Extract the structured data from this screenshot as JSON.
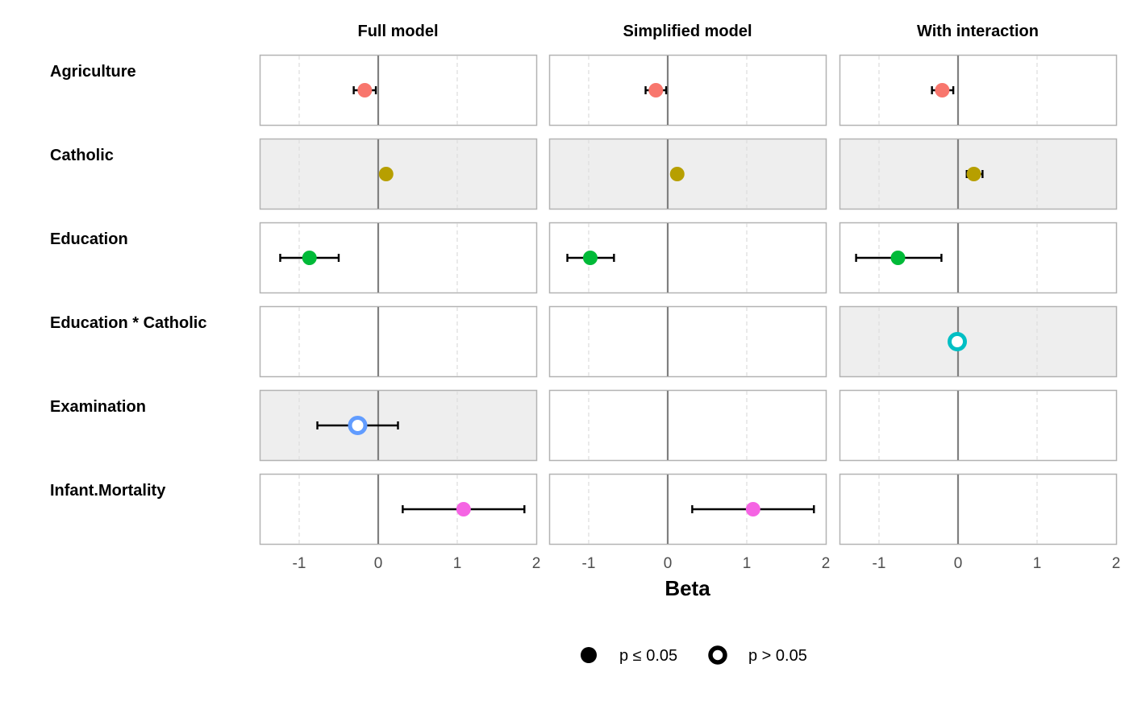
{
  "chart_data": {
    "type": "forest",
    "xlabel": "Beta",
    "xlim": [
      -1.5,
      2
    ],
    "x_ticks": [
      -1,
      0,
      1,
      2
    ],
    "x_tick_labels": [
      "-1",
      "0",
      "1",
      "2"
    ],
    "grid": "vertical dashed at ticks, solid reference line at 0",
    "columns": [
      "Full model",
      "Simplified model",
      "With interaction"
    ],
    "terms": [
      "Agriculture",
      "Catholic",
      "Education",
      "Education * Catholic",
      "Examination",
      "Infant.Mortality"
    ],
    "term_colors": {
      "Agriculture": "#F8766D",
      "Catholic": "#B79F00",
      "Education": "#00BA38",
      "Education * Catholic": "#00BFC4",
      "Examination": "#619CFF",
      "Infant.Mortality": "#F564E3"
    },
    "estimates": [
      {
        "model": "Full model",
        "term": "Agriculture",
        "beta": -0.17,
        "low": -0.31,
        "high": -0.03,
        "significant": true
      },
      {
        "model": "Full model",
        "term": "Catholic",
        "beta": 0.1,
        "low": 0.05,
        "high": 0.15,
        "significant": true
      },
      {
        "model": "Full model",
        "term": "Education",
        "beta": -0.87,
        "low": -1.24,
        "high": -0.5,
        "significant": true
      },
      {
        "model": "Full model",
        "term": "Examination",
        "beta": -0.26,
        "low": -0.77,
        "high": 0.25,
        "significant": false
      },
      {
        "model": "Full model",
        "term": "Infant.Mortality",
        "beta": 1.08,
        "low": 0.31,
        "high": 1.85,
        "significant": true
      },
      {
        "model": "Simplified model",
        "term": "Agriculture",
        "beta": -0.15,
        "low": -0.28,
        "high": -0.02,
        "significant": true
      },
      {
        "model": "Simplified model",
        "term": "Catholic",
        "beta": 0.12,
        "low": 0.07,
        "high": 0.17,
        "significant": true
      },
      {
        "model": "Simplified model",
        "term": "Education",
        "beta": -0.98,
        "low": -1.27,
        "high": -0.68,
        "significant": true
      },
      {
        "model": "Simplified model",
        "term": "Infant.Mortality",
        "beta": 1.08,
        "low": 0.31,
        "high": 1.85,
        "significant": true
      },
      {
        "model": "With interaction",
        "term": "Agriculture",
        "beta": -0.2,
        "low": -0.33,
        "high": -0.06,
        "significant": true
      },
      {
        "model": "With interaction",
        "term": "Catholic",
        "beta": 0.2,
        "low": 0.11,
        "high": 0.31,
        "significant": true
      },
      {
        "model": "With interaction",
        "term": "Education",
        "beta": -0.76,
        "low": -1.29,
        "high": -0.21,
        "significant": true
      },
      {
        "model": "With interaction",
        "term": "Education * Catholic",
        "beta": -0.01,
        "low": -0.02,
        "high": 0.01,
        "significant": false
      }
    ],
    "shaded_panels": [
      {
        "model": "Full model",
        "term": "Catholic"
      },
      {
        "model": "Simplified model",
        "term": "Catholic"
      },
      {
        "model": "With interaction",
        "term": "Catholic"
      },
      {
        "model": "With interaction",
        "term": "Education * Catholic"
      },
      {
        "model": "Full model",
        "term": "Examination"
      }
    ],
    "legend": {
      "placement": "bottom-center",
      "items": [
        {
          "label": "p ≤ 0.05",
          "shape": "filled"
        },
        {
          "label": "p > 0.05",
          "shape": "hollow"
        }
      ]
    },
    "colors": {
      "panel_border": "#B3B3B3",
      "panel_shaded": "#EEEEEE",
      "zero_line": "#808080",
      "grid": "#DDDDDD",
      "errorbar": "#000000"
    }
  }
}
